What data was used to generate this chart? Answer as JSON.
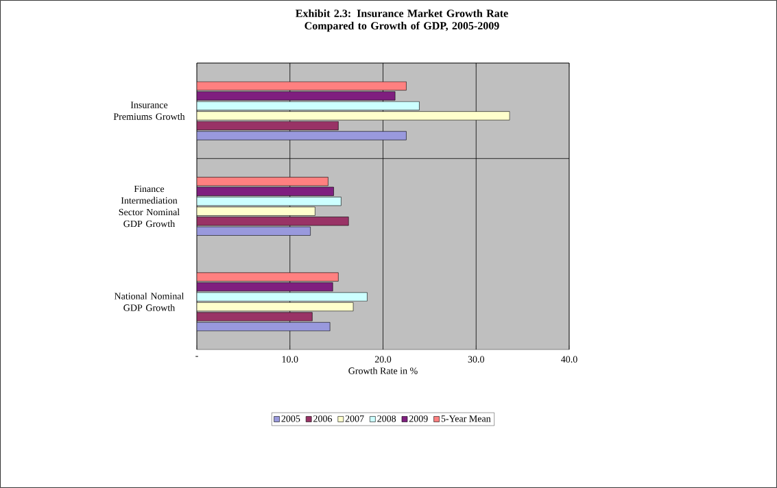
{
  "chart_data": {
    "type": "bar",
    "orientation": "horizontal",
    "title": "Exhibit 2.3: Insurance Market Growth Rate Compared to Growth of GDP, 2005-2009",
    "xlabel": "Growth Rate in %",
    "categories": [
      "Insurance Premiums Growth",
      "Finance Intermediation Sector Nominal GDP Growth",
      "National Nominal GDP Growth"
    ],
    "series": [
      {
        "name": "2005",
        "color": "#9999dd",
        "values": [
          22.5,
          12.2,
          14.3
        ]
      },
      {
        "name": "2006",
        "color": "#993366",
        "values": [
          15.2,
          16.3,
          12.4
        ]
      },
      {
        "name": "2007",
        "color": "#ffffcc",
        "values": [
          33.6,
          12.7,
          16.8
        ]
      },
      {
        "name": "2008",
        "color": "#ccffff",
        "values": [
          23.9,
          15.5,
          18.3
        ]
      },
      {
        "name": "2009",
        "color": "#7f1f7f",
        "values": [
          21.3,
          14.7,
          14.6
        ]
      },
      {
        "name": "5-Year Mean",
        "color": "#ff8080",
        "values": [
          22.5,
          14.1,
          15.2
        ]
      }
    ],
    "xlim": [
      0,
      40
    ],
    "xticks": [
      {
        "value": 0,
        "label": "-"
      },
      {
        "value": 10,
        "label": "10.0"
      },
      {
        "value": 20,
        "label": "20.0"
      },
      {
        "value": 30,
        "label": "30.0"
      },
      {
        "value": 40,
        "label": "40.0"
      }
    ],
    "grid": true,
    "legend": "bottom"
  }
}
